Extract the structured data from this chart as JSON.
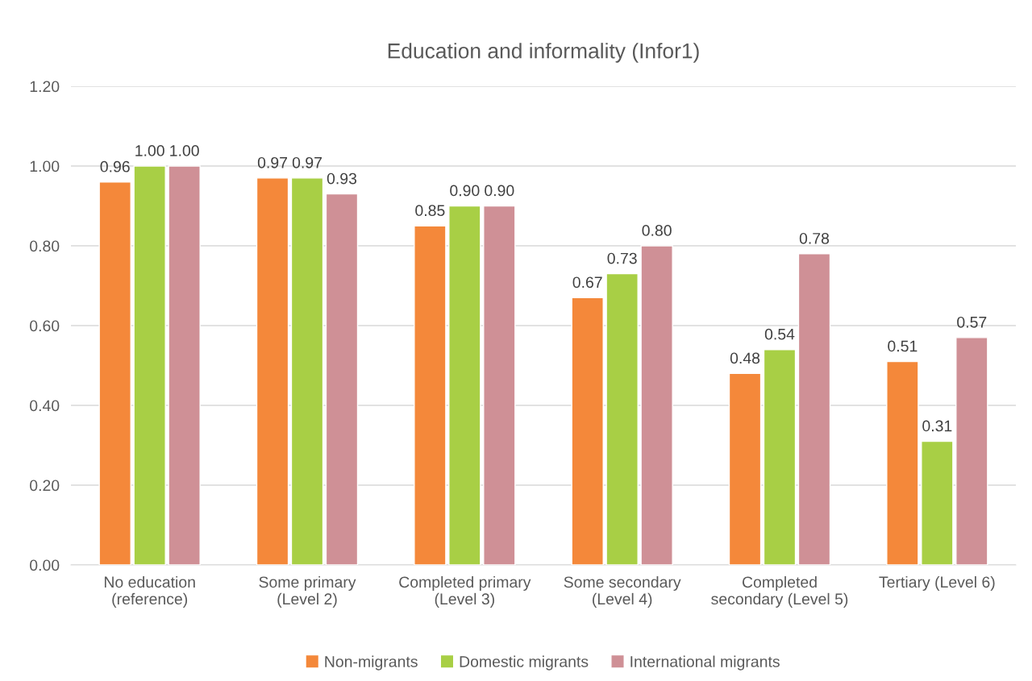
{
  "chart_data": {
    "type": "bar",
    "title": "Education and informality (Infor1)",
    "categories": [
      "No education\n(reference)",
      "Some primary\n(Level 2)",
      "Completed primary\n(Level 3)",
      "Some secondary\n(Level 4)",
      "Completed\nsecondary (Level 5)",
      "Tertiary (Level 6)"
    ],
    "series": [
      {
        "name": "Non-migrants",
        "color": "#f4883a",
        "values": [
          0.96,
          0.97,
          0.85,
          0.67,
          0.48,
          0.51
        ],
        "value_labels": [
          "0.96",
          "0.97",
          "0.85",
          "0.67",
          "0.48",
          "0.51"
        ]
      },
      {
        "name": "Domestic migrants",
        "color": "#a8cf45",
        "values": [
          1.0,
          0.97,
          0.9,
          0.73,
          0.54,
          0.31
        ],
        "value_labels": [
          "1.00",
          "0.97",
          "0.90",
          "0.73",
          "0.54",
          "0.31"
        ]
      },
      {
        "name": "International migrants",
        "color": "#cf9096",
        "values": [
          1.0,
          0.93,
          0.9,
          0.8,
          0.78,
          0.57
        ],
        "value_labels": [
          "1.00",
          "0.93",
          "0.90",
          "0.80",
          "0.78",
          "0.57"
        ]
      }
    ],
    "ylim": [
      0,
      1.2
    ],
    "yticks": [
      {
        "value": 0,
        "label": "0.00"
      },
      {
        "value": 0.2,
        "label": "0.20"
      },
      {
        "value": 0.4,
        "label": "0.40"
      },
      {
        "value": 0.6,
        "label": "0.60"
      },
      {
        "value": 0.8,
        "label": "0.80"
      },
      {
        "value": 1.0,
        "label": "1.00"
      },
      {
        "value": 1.2,
        "label": "1.20"
      }
    ],
    "grid": "y",
    "legend": "bottom"
  }
}
